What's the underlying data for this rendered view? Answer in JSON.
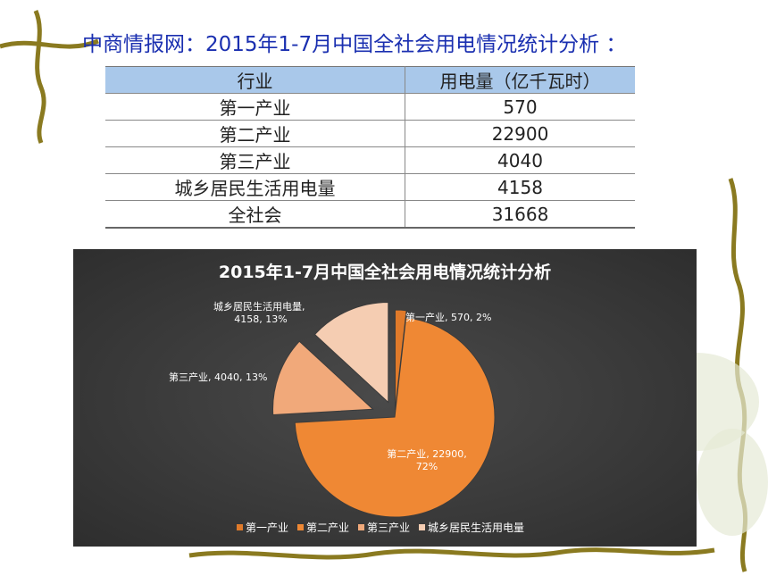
{
  "header": {
    "title": "中商情报网：2015年1-7月中国全社会用电情况统计分析 ："
  },
  "table": {
    "headers": [
      "行业",
      "用电量（亿千瓦时）"
    ],
    "rows": [
      [
        "第一产业",
        "570"
      ],
      [
        "第二产业",
        "22900"
      ],
      [
        "第三产业",
        "4040"
      ],
      [
        "城乡居民生活用电量",
        "4158"
      ],
      [
        "全社会",
        "31668"
      ]
    ]
  },
  "colors": {
    "title": "#1a2fb0",
    "table_header": "#a9c8ea",
    "chart_bg": "#3b3b3b"
  },
  "chart_data": {
    "type": "pie",
    "title": "2015年1-7月中国全社会用电情况统计分析",
    "categories": [
      "第一产业",
      "第二产业",
      "第三产业",
      "城乡居民生活用电量"
    ],
    "values": [
      570,
      22900,
      4040,
      4158
    ],
    "percent": [
      "2%",
      "72%",
      "13%",
      "13%"
    ],
    "colors": [
      "#e07a2a",
      "#ef8834",
      "#f1a97a",
      "#f5cdb2"
    ],
    "label_colors": [
      "#ffffff",
      "#ffffff",
      "#ffffff",
      "#ffffff"
    ],
    "legend": "bottom"
  }
}
